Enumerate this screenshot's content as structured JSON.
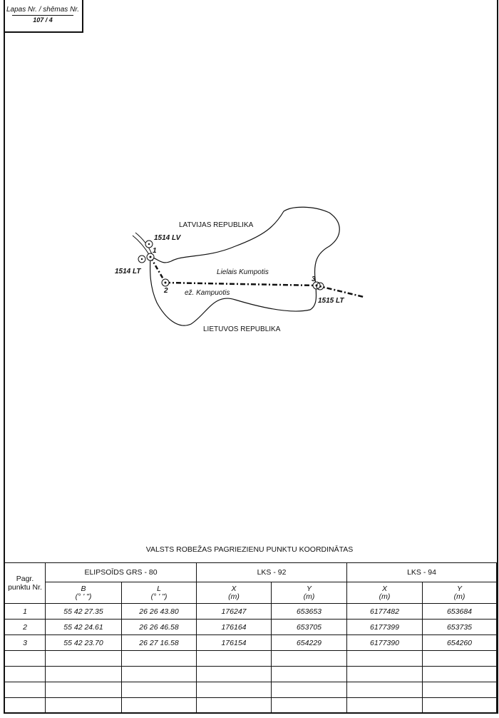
{
  "sheet": {
    "label": "Lapas Nr. / shēmas Nr.",
    "number": "107 / 4"
  },
  "map": {
    "country_north": "LATVIJAS REPUBLIKA",
    "country_south": "LIETUVOS REPUBLIKA",
    "lake_name_lv": "Lielais Kumpotis",
    "lake_name_lt": "ež. Kampuotis",
    "markers": [
      {
        "label": "1514 LV"
      },
      {
        "label": "1514 LT"
      },
      {
        "label": "1515 LT"
      }
    ],
    "points": [
      {
        "label": "1"
      },
      {
        "label": "2"
      },
      {
        "label": "3"
      }
    ]
  },
  "table": {
    "title": "VALSTS ROBEŽAS PAGRIEZIENU PUNKTU KOORDINĀTAS",
    "col_point": "Pagr. punktu Nr.",
    "groups": [
      "ELIPSOĪDS GRS - 80",
      "LKS - 92",
      "LKS - 94"
    ],
    "subheaders": [
      {
        "name": "B",
        "unit": "(° ' \")"
      },
      {
        "name": "L",
        "unit": "(° ' \")"
      },
      {
        "name": "X",
        "unit": "(m)"
      },
      {
        "name": "Y",
        "unit": "(m)"
      },
      {
        "name": "X",
        "unit": "(m)"
      },
      {
        "name": "Y",
        "unit": "(m)"
      }
    ],
    "rows": [
      [
        "1",
        "55 42 27.35",
        "26 26 43.80",
        "176247",
        "653653",
        "6177482",
        "653684"
      ],
      [
        "2",
        "55 42 24.61",
        "26 26 46.58",
        "176164",
        "653705",
        "6177399",
        "653735"
      ],
      [
        "3",
        "55 42 23.70",
        "26 27 16.58",
        "176154",
        "654229",
        "6177390",
        "654260"
      ]
    ],
    "empty_rows": 4
  }
}
